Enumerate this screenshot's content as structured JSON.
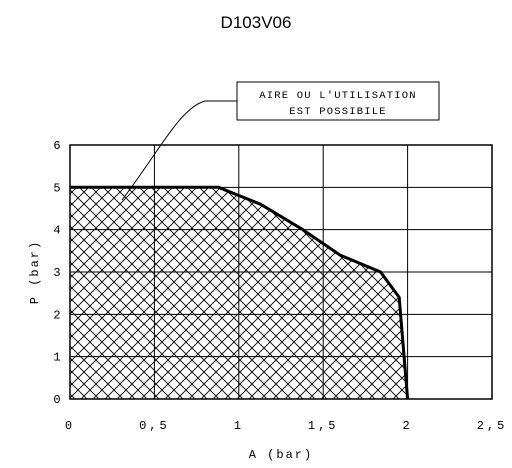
{
  "chart_data": {
    "type": "area",
    "title": "D103V06",
    "xlabel": "A (bar)",
    "ylabel": "P (bar)",
    "xlim": [
      0,
      2.5
    ],
    "ylim": [
      0,
      6
    ],
    "x_ticks": [
      {
        "value": 0,
        "label": "0"
      },
      {
        "value": 0.5,
        "label": "0,5"
      },
      {
        "value": 1,
        "label": "1"
      },
      {
        "value": 1.5,
        "label": "1,5"
      },
      {
        "value": 2,
        "label": "2"
      },
      {
        "value": 2.5,
        "label": "2,5"
      }
    ],
    "y_ticks": [
      {
        "value": 0,
        "label": "0"
      },
      {
        "value": 1,
        "label": "1"
      },
      {
        "value": 2,
        "label": "2"
      },
      {
        "value": 3,
        "label": "3"
      },
      {
        "value": 4,
        "label": "4"
      },
      {
        "value": 5,
        "label": "5"
      },
      {
        "value": 6,
        "label": "6"
      }
    ],
    "grid": true,
    "series": [
      {
        "points": [
          [
            0,
            5
          ],
          [
            0.88,
            5
          ],
          [
            1.13,
            4.6
          ],
          [
            1.38,
            4.0
          ],
          [
            1.6,
            3.4
          ],
          [
            1.84,
            3.0
          ],
          [
            1.95,
            2.4
          ],
          [
            2.0,
            0
          ]
        ],
        "fill": "crosshatch",
        "color": "#000000"
      }
    ],
    "annotations": [
      {
        "lines": [
          "AIRE OU L'UTILISATION",
          "EST POSSIBILE"
        ],
        "points_to": [
          0.3,
          4.6
        ]
      }
    ]
  }
}
